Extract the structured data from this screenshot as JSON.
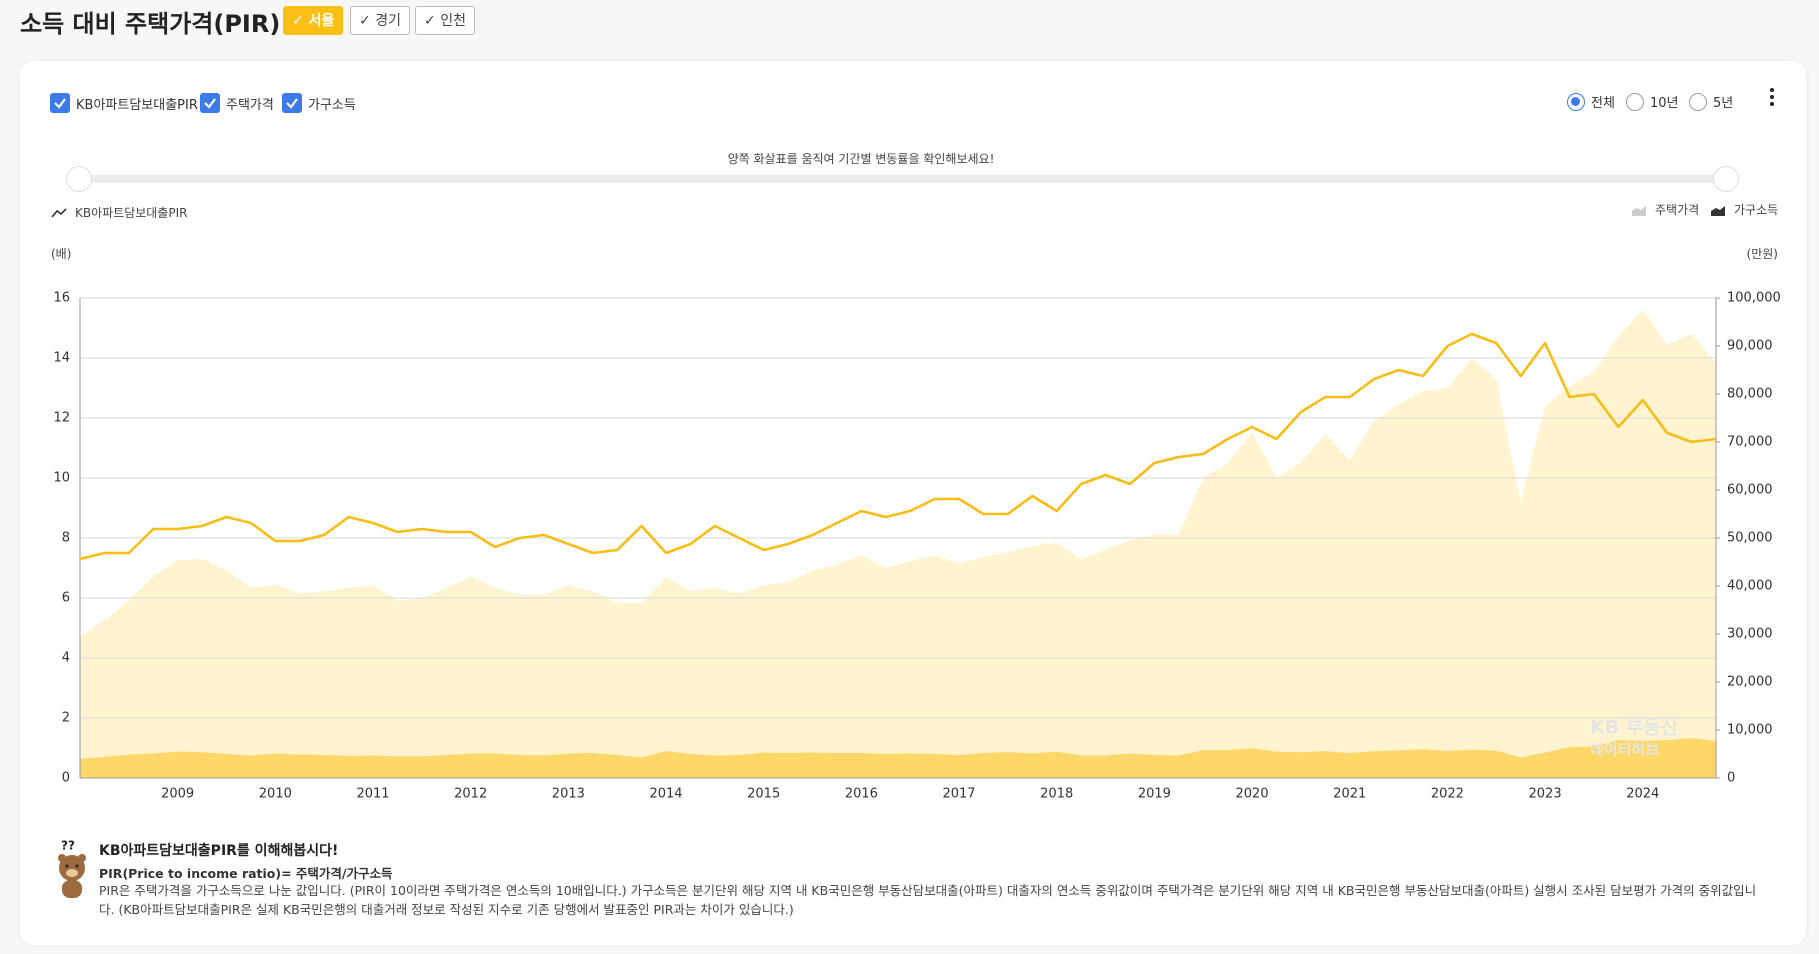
{
  "header": {
    "title": "소득 대비 주택가격(PIR)",
    "regions": [
      "서울",
      "경기",
      "인천"
    ]
  },
  "controls": {
    "checkboxes": [
      "KB아파트담보대출PIR",
      "주택가격",
      "가구소득"
    ],
    "periods": [
      "전체",
      "10년",
      "5년"
    ],
    "slider_hint": "양쪽 화살표를 움직여 기간별 변동률을 확인해보세요!"
  },
  "chart_data": {
    "type": "combo",
    "y_label": "(배)",
    "y2_label": "(만원)",
    "categories": [
      null,
      null,
      null,
      null,
      "2009",
      null,
      null,
      null,
      "2010",
      null,
      null,
      null,
      "2011",
      null,
      null,
      null,
      "2012",
      null,
      null,
      null,
      "2013",
      null,
      null,
      null,
      "2014",
      null,
      null,
      null,
      "2015",
      null,
      null,
      null,
      "2016",
      null,
      null,
      null,
      "2017",
      null,
      null,
      null,
      "2018",
      null,
      null,
      null,
      "2019",
      null,
      null,
      null,
      "2020",
      null,
      null,
      null,
      "2021",
      null,
      null,
      null,
      "2022",
      null,
      null,
      null,
      "2023",
      null,
      null,
      null,
      "2024",
      null,
      null,
      null
    ],
    "series": [
      {
        "name": "KB아파트담보대출PIR",
        "type": "line",
        "color": "#f8bd14",
        "values": [
          7.3,
          7.5,
          7.5,
          8.3,
          8.3,
          8.4,
          8.7,
          8.5,
          7.9,
          7.9,
          8.1,
          8.7,
          8.5,
          8.2,
          8.3,
          8.2,
          8.2,
          7.7,
          8.0,
          8.1,
          7.8,
          7.5,
          7.6,
          8.4,
          7.5,
          7.8,
          8.4,
          8.0,
          7.6,
          7.8,
          8.1,
          8.5,
          8.9,
          8.7,
          8.9,
          9.3,
          9.3,
          8.8,
          8.8,
          9.4,
          8.9,
          9.8,
          10.1,
          9.8,
          10.5,
          10.7,
          10.8,
          11.3,
          11.7,
          11.3,
          12.2,
          12.7,
          12.7,
          13.3,
          13.6,
          13.4,
          14.4,
          14.8,
          14.5,
          13.4,
          14.5,
          12.7,
          12.8,
          11.7,
          12.6,
          11.5,
          11.2,
          11.3
        ]
      },
      {
        "name": "주택가격",
        "type": "area",
        "axis": "y2",
        "color": "#fff4cf",
        "values": [
          29500,
          32800,
          37000,
          42000,
          45400,
          45600,
          43200,
          39600,
          40300,
          38400,
          38900,
          39600,
          40100,
          37000,
          37400,
          39600,
          42000,
          39600,
          38200,
          38200,
          40100,
          38900,
          36500,
          36500,
          41800,
          38900,
          39600,
          38400,
          40100,
          40800,
          43200,
          44400,
          46400,
          43700,
          45200,
          46400,
          44700,
          46100,
          47100,
          48300,
          49000,
          45600,
          47600,
          49500,
          50700,
          50700,
          62600,
          65500,
          72000,
          62600,
          65700,
          71700,
          66200,
          74400,
          77800,
          80700,
          81200,
          87400,
          83100,
          57700,
          77500,
          81600,
          84500,
          92000,
          97600,
          90300,
          92500,
          86500
        ]
      },
      {
        "name": "가구소득",
        "type": "area",
        "axis": "y2",
        "color": "#fdd868",
        "values": [
          4000,
          4400,
          4900,
          5100,
          5500,
          5400,
          5000,
          4700,
          5100,
          4900,
          4800,
          4600,
          4700,
          4500,
          4500,
          4800,
          5100,
          5100,
          4800,
          4700,
          5100,
          5200,
          4800,
          4300,
          5600,
          5000,
          4700,
          4800,
          5300,
          5200,
          5300,
          5200,
          5200,
          5000,
          5100,
          5000,
          4800,
          5200,
          5400,
          5100,
          5500,
          4700,
          4700,
          5100,
          4800,
          4700,
          5800,
          5800,
          6200,
          5500,
          5400,
          5600,
          5200,
          5600,
          5700,
          6000,
          5600,
          5900,
          5700,
          4300,
          5300,
          6400,
          6600,
          7900,
          7700,
          7900,
          8300,
          7700
        ]
      }
    ],
    "ylim": [
      0,
      16
    ],
    "yticks": [
      0,
      2,
      4,
      6,
      8,
      10,
      12,
      14,
      16
    ],
    "y2lim": [
      0,
      100000
    ],
    "y2ticks": [
      0,
      {
        "value": 10000,
        "label": "10,000"
      },
      {
        "value": 20000,
        "label": "20,000"
      },
      {
        "value": 30000,
        "label": "30,000"
      },
      {
        "value": 40000,
        "label": "40,000"
      },
      {
        "value": 50000,
        "label": "50,000"
      },
      {
        "value": 60000,
        "label": "60,000"
      },
      {
        "value": 70000,
        "label": "70,000"
      },
      {
        "value": 80000,
        "label": "80,000"
      },
      {
        "value": 90000,
        "label": "90,000"
      },
      {
        "value": 100000,
        "label": "100,000"
      }
    ],
    "grid": true,
    "watermark": [
      "KB 부동산",
      "데이터허브"
    ]
  },
  "info": {
    "title": "KB아파트담보대출PIR를 이해해봅시다!",
    "formula": "PIR(Price to income ratio)= 주택가격/가구소득",
    "text": "PIR은 주택가격을 가구소득으로 나눈 값입니다. (PIR이 10이라면 주택가격은 연소득의 10배입니다.) 가구소득은 분기단위 해당 지역 내 KB국민은행 부동산담보대출(아파트) 대출자의 연소득 중위값이며 주택가격은 분기단위 해당 지역 내 KB국민은행 부동산담보대출(아파트) 실행시 조사된 담보평가 가격의 중위값입니다. (KB아파트담보대출PIR은 실제 KB국민은행의 대출거래 정보로 작성된 지수로 기존 당행에서 발표중인 PIR과는 차이가 있습니다.)"
  }
}
